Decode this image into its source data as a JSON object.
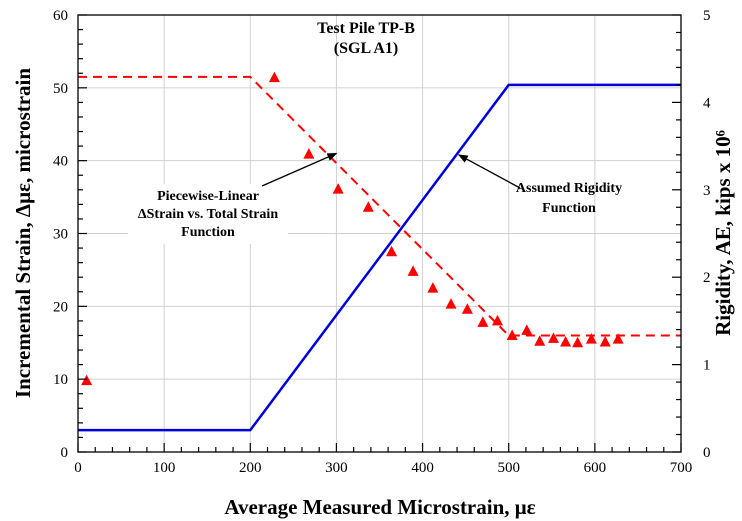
{
  "chart_data": {
    "type": "scatter",
    "title": "Test Pile TP-B",
    "subtitle": "(SGL A1)",
    "xlabel": "Average Measured Microstrain, με",
    "ylabel": "Incremental Strain, Δμε, microstrain",
    "y2label": "Rigidity, AE, kips x 10⁶",
    "xlim": [
      0,
      700
    ],
    "ylim": [
      0,
      60
    ],
    "y2lim": [
      0,
      5
    ],
    "xticks": [
      "0",
      "100",
      "200",
      "300",
      "400",
      "500",
      "600",
      "700"
    ],
    "yticks": [
      "0",
      "10",
      "20",
      "30",
      "40",
      "50",
      "60"
    ],
    "y2ticks": [
      "0",
      "1",
      "2",
      "3",
      "4",
      "5"
    ],
    "grid": true,
    "series": [
      {
        "kind": "markers",
        "marker": "triangle",
        "color": "#ff0000",
        "x": [
          10,
          228,
          268,
          302,
          337,
          364,
          389,
          412,
          433,
          452,
          470,
          487,
          504,
          521,
          536,
          552,
          566,
          580,
          596,
          612,
          627
        ],
        "y": [
          9.8,
          51.4,
          40.9,
          36.1,
          33.6,
          27.5,
          24.8,
          22.5,
          20.3,
          19.6,
          17.8,
          18.0,
          16.0,
          16.7,
          15.2,
          15.6,
          15.1,
          15.0,
          15.5,
          15.1,
          15.5
        ]
      },
      {
        "kind": "dashed-line",
        "color": "#ff0000",
        "axis": "left",
        "x": [
          0,
          200,
          500,
          700
        ],
        "y": [
          51.5,
          51.5,
          16.0,
          16.0
        ]
      },
      {
        "kind": "solid-line",
        "color": "#0000dd",
        "axis": "right",
        "x": [
          0,
          200,
          500,
          700
        ],
        "y": [
          0.25,
          0.25,
          4.2,
          4.2
        ]
      }
    ],
    "annotations": [
      {
        "lines": [
          "Piecewise-Linear",
          "ΔStrain vs. Total Strain",
          "Function"
        ],
        "arrow_to": [
          300,
          41
        ]
      },
      {
        "lines": [
          "Assumed Rigidity",
          "Function"
        ],
        "arrow_to": [
          442,
          3.4
        ]
      }
    ]
  }
}
